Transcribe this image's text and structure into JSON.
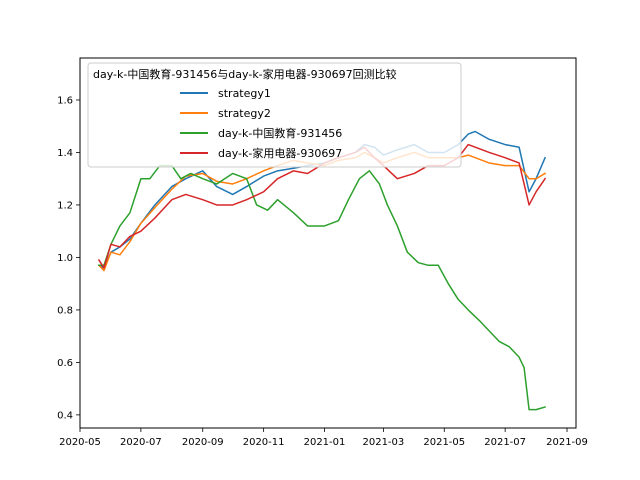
{
  "chart_data": {
    "type": "line",
    "title": "",
    "xlabel": "",
    "ylabel": "",
    "xlim": [
      "2020-05-01",
      "2021-09-10"
    ],
    "ylim": [
      0.35,
      1.76
    ],
    "x_ticks": [
      "2020-05",
      "2020-07",
      "2020-09",
      "2020-11",
      "2021-01",
      "2021-03",
      "2021-05",
      "2021-07",
      "2021-09"
    ],
    "y_ticks": [
      0.4,
      0.6,
      0.8,
      1.0,
      1.2,
      1.4,
      1.6
    ],
    "grid": false,
    "legend": {
      "title": "day-k-中国教育-931456与day-k-家用电器-930697回测比较",
      "placement": "top-left"
    },
    "series": [
      {
        "name": "strategy1",
        "color": "#1f77b4",
        "x": [
          "2020-05-20",
          "2020-05-25",
          "2020-06-01",
          "2020-06-10",
          "2020-06-20",
          "2020-07-01",
          "2020-07-15",
          "2020-08-01",
          "2020-08-15",
          "2020-09-01",
          "2020-09-15",
          "2020-10-01",
          "2020-10-15",
          "2020-11-01",
          "2020-11-15",
          "2020-12-01",
          "2020-12-15",
          "2021-01-01",
          "2021-01-15",
          "2021-02-01",
          "2021-02-10",
          "2021-02-20",
          "2021-03-01",
          "2021-03-15",
          "2021-04-01",
          "2021-04-15",
          "2021-05-01",
          "2021-05-15",
          "2021-05-25",
          "2021-06-01",
          "2021-06-15",
          "2021-07-01",
          "2021-07-15",
          "2021-07-25",
          "2021-08-01",
          "2021-08-10"
        ],
        "y": [
          0.97,
          0.96,
          1.02,
          1.04,
          1.07,
          1.13,
          1.2,
          1.27,
          1.3,
          1.33,
          1.27,
          1.24,
          1.27,
          1.31,
          1.33,
          1.34,
          1.35,
          1.36,
          1.38,
          1.4,
          1.43,
          1.42,
          1.39,
          1.41,
          1.43,
          1.4,
          1.4,
          1.43,
          1.47,
          1.48,
          1.45,
          1.43,
          1.42,
          1.25,
          1.3,
          1.38
        ]
      },
      {
        "name": "strategy2",
        "color": "#ff7f0e",
        "x": [
          "2020-05-20",
          "2020-05-25",
          "2020-06-01",
          "2020-06-10",
          "2020-06-20",
          "2020-07-01",
          "2020-07-15",
          "2020-08-01",
          "2020-08-15",
          "2020-09-01",
          "2020-09-15",
          "2020-10-01",
          "2020-10-15",
          "2020-11-01",
          "2020-11-15",
          "2020-12-01",
          "2020-12-15",
          "2021-01-01",
          "2021-01-15",
          "2021-02-01",
          "2021-02-10",
          "2021-02-20",
          "2021-03-01",
          "2021-03-15",
          "2021-04-01",
          "2021-04-15",
          "2021-05-01",
          "2021-05-15",
          "2021-05-25",
          "2021-06-01",
          "2021-06-15",
          "2021-07-01",
          "2021-07-15",
          "2021-07-25",
          "2021-08-01",
          "2021-08-10"
        ],
        "y": [
          0.97,
          0.95,
          1.02,
          1.01,
          1.06,
          1.13,
          1.19,
          1.26,
          1.31,
          1.32,
          1.29,
          1.28,
          1.3,
          1.33,
          1.35,
          1.37,
          1.36,
          1.35,
          1.37,
          1.38,
          1.4,
          1.38,
          1.36,
          1.38,
          1.4,
          1.38,
          1.38,
          1.38,
          1.39,
          1.38,
          1.36,
          1.35,
          1.35,
          1.3,
          1.3,
          1.32
        ]
      },
      {
        "name": "day-k-中国教育-931456",
        "color": "#2ca02c",
        "x": [
          "2020-05-20",
          "2020-05-25",
          "2020-06-01",
          "2020-06-10",
          "2020-06-20",
          "2020-07-01",
          "2020-07-10",
          "2020-07-20",
          "2020-08-01",
          "2020-08-10",
          "2020-08-20",
          "2020-09-01",
          "2020-09-15",
          "2020-10-01",
          "2020-10-15",
          "2020-10-25",
          "2020-11-05",
          "2020-11-15",
          "2020-12-01",
          "2020-12-15",
          "2021-01-01",
          "2021-01-15",
          "2021-01-25",
          "2021-02-05",
          "2021-02-15",
          "2021-02-25",
          "2021-03-05",
          "2021-03-15",
          "2021-03-25",
          "2021-04-05",
          "2021-04-15",
          "2021-04-25",
          "2021-05-05",
          "2021-05-15",
          "2021-05-25",
          "2021-06-05",
          "2021-06-15",
          "2021-06-25",
          "2021-07-05",
          "2021-07-15",
          "2021-07-20",
          "2021-07-25",
          "2021-08-01",
          "2021-08-10"
        ],
        "y": [
          0.97,
          0.97,
          1.05,
          1.12,
          1.17,
          1.3,
          1.3,
          1.35,
          1.35,
          1.3,
          1.32,
          1.3,
          1.28,
          1.32,
          1.3,
          1.2,
          1.18,
          1.22,
          1.17,
          1.12,
          1.12,
          1.14,
          1.22,
          1.3,
          1.33,
          1.28,
          1.2,
          1.12,
          1.02,
          0.98,
          0.97,
          0.97,
          0.9,
          0.84,
          0.8,
          0.76,
          0.72,
          0.68,
          0.66,
          0.62,
          0.58,
          0.42,
          0.42,
          0.43
        ]
      },
      {
        "name": "day-k-家用电器-930697",
        "color": "#d62728",
        "x": [
          "2020-05-20",
          "2020-05-25",
          "2020-06-01",
          "2020-06-10",
          "2020-06-20",
          "2020-07-01",
          "2020-07-15",
          "2020-08-01",
          "2020-08-15",
          "2020-09-01",
          "2020-09-15",
          "2020-10-01",
          "2020-10-15",
          "2020-11-01",
          "2020-11-15",
          "2020-12-01",
          "2020-12-15",
          "2021-01-01",
          "2021-01-15",
          "2021-02-01",
          "2021-02-10",
          "2021-02-20",
          "2021-03-01",
          "2021-03-15",
          "2021-04-01",
          "2021-04-15",
          "2021-05-01",
          "2021-05-15",
          "2021-05-25",
          "2021-06-01",
          "2021-06-15",
          "2021-07-01",
          "2021-07-15",
          "2021-07-25",
          "2021-08-01",
          "2021-08-10"
        ],
        "y": [
          0.99,
          0.96,
          1.05,
          1.04,
          1.08,
          1.1,
          1.15,
          1.22,
          1.24,
          1.22,
          1.2,
          1.2,
          1.22,
          1.25,
          1.3,
          1.33,
          1.32,
          1.36,
          1.38,
          1.4,
          1.42,
          1.38,
          1.35,
          1.3,
          1.32,
          1.35,
          1.35,
          1.38,
          1.43,
          1.42,
          1.4,
          1.38,
          1.36,
          1.2,
          1.25,
          1.3
        ]
      }
    ]
  }
}
